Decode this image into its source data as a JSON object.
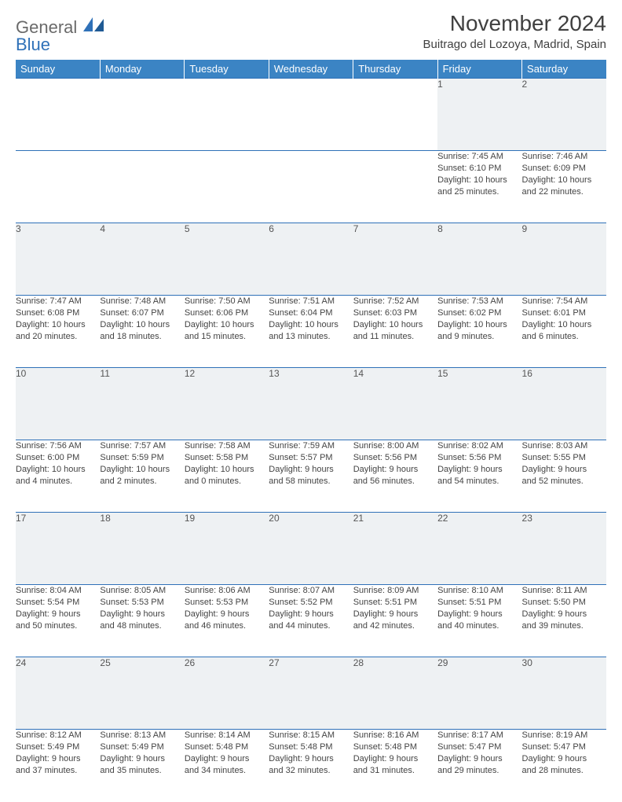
{
  "logo": {
    "line1": "General",
    "line2": "Blue"
  },
  "title": "November 2024",
  "location": "Buitrago del Lozoya, Madrid, Spain",
  "colors": {
    "header_bg": "#3b84c4",
    "header_text": "#ffffff",
    "border": "#2f71b8",
    "daynum_bg": "#eef1f3",
    "text": "#444444",
    "logo_gray": "#6a6a6a",
    "logo_blue": "#2f71b8"
  },
  "weekdays": [
    "Sunday",
    "Monday",
    "Tuesday",
    "Wednesday",
    "Thursday",
    "Friday",
    "Saturday"
  ],
  "weeks": [
    [
      {
        "n": "",
        "sr": "",
        "ss": "",
        "dl": "",
        "dl2": ""
      },
      {
        "n": "",
        "sr": "",
        "ss": "",
        "dl": "",
        "dl2": ""
      },
      {
        "n": "",
        "sr": "",
        "ss": "",
        "dl": "",
        "dl2": ""
      },
      {
        "n": "",
        "sr": "",
        "ss": "",
        "dl": "",
        "dl2": ""
      },
      {
        "n": "",
        "sr": "",
        "ss": "",
        "dl": "",
        "dl2": ""
      },
      {
        "n": "1",
        "sr": "Sunrise: 7:45 AM",
        "ss": "Sunset: 6:10 PM",
        "dl": "Daylight: 10 hours",
        "dl2": "and 25 minutes."
      },
      {
        "n": "2",
        "sr": "Sunrise: 7:46 AM",
        "ss": "Sunset: 6:09 PM",
        "dl": "Daylight: 10 hours",
        "dl2": "and 22 minutes."
      }
    ],
    [
      {
        "n": "3",
        "sr": "Sunrise: 7:47 AM",
        "ss": "Sunset: 6:08 PM",
        "dl": "Daylight: 10 hours",
        "dl2": "and 20 minutes."
      },
      {
        "n": "4",
        "sr": "Sunrise: 7:48 AM",
        "ss": "Sunset: 6:07 PM",
        "dl": "Daylight: 10 hours",
        "dl2": "and 18 minutes."
      },
      {
        "n": "5",
        "sr": "Sunrise: 7:50 AM",
        "ss": "Sunset: 6:06 PM",
        "dl": "Daylight: 10 hours",
        "dl2": "and 15 minutes."
      },
      {
        "n": "6",
        "sr": "Sunrise: 7:51 AM",
        "ss": "Sunset: 6:04 PM",
        "dl": "Daylight: 10 hours",
        "dl2": "and 13 minutes."
      },
      {
        "n": "7",
        "sr": "Sunrise: 7:52 AM",
        "ss": "Sunset: 6:03 PM",
        "dl": "Daylight: 10 hours",
        "dl2": "and 11 minutes."
      },
      {
        "n": "8",
        "sr": "Sunrise: 7:53 AM",
        "ss": "Sunset: 6:02 PM",
        "dl": "Daylight: 10 hours",
        "dl2": "and 9 minutes."
      },
      {
        "n": "9",
        "sr": "Sunrise: 7:54 AM",
        "ss": "Sunset: 6:01 PM",
        "dl": "Daylight: 10 hours",
        "dl2": "and 6 minutes."
      }
    ],
    [
      {
        "n": "10",
        "sr": "Sunrise: 7:56 AM",
        "ss": "Sunset: 6:00 PM",
        "dl": "Daylight: 10 hours",
        "dl2": "and 4 minutes."
      },
      {
        "n": "11",
        "sr": "Sunrise: 7:57 AM",
        "ss": "Sunset: 5:59 PM",
        "dl": "Daylight: 10 hours",
        "dl2": "and 2 minutes."
      },
      {
        "n": "12",
        "sr": "Sunrise: 7:58 AM",
        "ss": "Sunset: 5:58 PM",
        "dl": "Daylight: 10 hours",
        "dl2": "and 0 minutes."
      },
      {
        "n": "13",
        "sr": "Sunrise: 7:59 AM",
        "ss": "Sunset: 5:57 PM",
        "dl": "Daylight: 9 hours",
        "dl2": "and 58 minutes."
      },
      {
        "n": "14",
        "sr": "Sunrise: 8:00 AM",
        "ss": "Sunset: 5:56 PM",
        "dl": "Daylight: 9 hours",
        "dl2": "and 56 minutes."
      },
      {
        "n": "15",
        "sr": "Sunrise: 8:02 AM",
        "ss": "Sunset: 5:56 PM",
        "dl": "Daylight: 9 hours",
        "dl2": "and 54 minutes."
      },
      {
        "n": "16",
        "sr": "Sunrise: 8:03 AM",
        "ss": "Sunset: 5:55 PM",
        "dl": "Daylight: 9 hours",
        "dl2": "and 52 minutes."
      }
    ],
    [
      {
        "n": "17",
        "sr": "Sunrise: 8:04 AM",
        "ss": "Sunset: 5:54 PM",
        "dl": "Daylight: 9 hours",
        "dl2": "and 50 minutes."
      },
      {
        "n": "18",
        "sr": "Sunrise: 8:05 AM",
        "ss": "Sunset: 5:53 PM",
        "dl": "Daylight: 9 hours",
        "dl2": "and 48 minutes."
      },
      {
        "n": "19",
        "sr": "Sunrise: 8:06 AM",
        "ss": "Sunset: 5:53 PM",
        "dl": "Daylight: 9 hours",
        "dl2": "and 46 minutes."
      },
      {
        "n": "20",
        "sr": "Sunrise: 8:07 AM",
        "ss": "Sunset: 5:52 PM",
        "dl": "Daylight: 9 hours",
        "dl2": "and 44 minutes."
      },
      {
        "n": "21",
        "sr": "Sunrise: 8:09 AM",
        "ss": "Sunset: 5:51 PM",
        "dl": "Daylight: 9 hours",
        "dl2": "and 42 minutes."
      },
      {
        "n": "22",
        "sr": "Sunrise: 8:10 AM",
        "ss": "Sunset: 5:51 PM",
        "dl": "Daylight: 9 hours",
        "dl2": "and 40 minutes."
      },
      {
        "n": "23",
        "sr": "Sunrise: 8:11 AM",
        "ss": "Sunset: 5:50 PM",
        "dl": "Daylight: 9 hours",
        "dl2": "and 39 minutes."
      }
    ],
    [
      {
        "n": "24",
        "sr": "Sunrise: 8:12 AM",
        "ss": "Sunset: 5:49 PM",
        "dl": "Daylight: 9 hours",
        "dl2": "and 37 minutes."
      },
      {
        "n": "25",
        "sr": "Sunrise: 8:13 AM",
        "ss": "Sunset: 5:49 PM",
        "dl": "Daylight: 9 hours",
        "dl2": "and 35 minutes."
      },
      {
        "n": "26",
        "sr": "Sunrise: 8:14 AM",
        "ss": "Sunset: 5:48 PM",
        "dl": "Daylight: 9 hours",
        "dl2": "and 34 minutes."
      },
      {
        "n": "27",
        "sr": "Sunrise: 8:15 AM",
        "ss": "Sunset: 5:48 PM",
        "dl": "Daylight: 9 hours",
        "dl2": "and 32 minutes."
      },
      {
        "n": "28",
        "sr": "Sunrise: 8:16 AM",
        "ss": "Sunset: 5:48 PM",
        "dl": "Daylight: 9 hours",
        "dl2": "and 31 minutes."
      },
      {
        "n": "29",
        "sr": "Sunrise: 8:17 AM",
        "ss": "Sunset: 5:47 PM",
        "dl": "Daylight: 9 hours",
        "dl2": "and 29 minutes."
      },
      {
        "n": "30",
        "sr": "Sunrise: 8:19 AM",
        "ss": "Sunset: 5:47 PM",
        "dl": "Daylight: 9 hours",
        "dl2": "and 28 minutes."
      }
    ]
  ]
}
